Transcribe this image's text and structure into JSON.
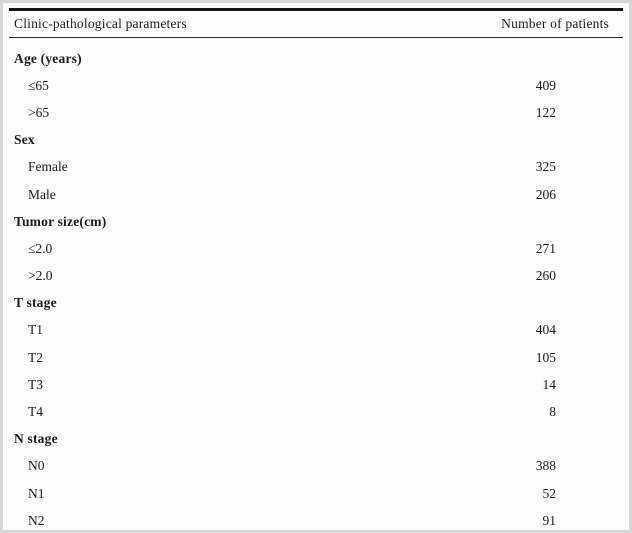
{
  "page": {
    "background_color": "#fcfcfc",
    "frame_border_color": "#d7d7d7",
    "rule_color": "#141414",
    "text_color": "#1c1c1c"
  },
  "table": {
    "header": {
      "parameter_label": "Clinic-pathological parameters",
      "value_label": "Number of patients"
    },
    "rows": [
      {
        "type": "group",
        "label": "Age (years)",
        "value": ""
      },
      {
        "type": "item",
        "label": "≤65",
        "value": "409"
      },
      {
        "type": "item",
        "label": ">65",
        "value": "122"
      },
      {
        "type": "group",
        "label": "Sex",
        "value": ""
      },
      {
        "type": "item",
        "label": "Female",
        "value": "325"
      },
      {
        "type": "item",
        "label": "Male",
        "value": "206"
      },
      {
        "type": "group",
        "label": "Tumor size(cm)",
        "value": ""
      },
      {
        "type": "item",
        "label": "≤2.0",
        "value": "271"
      },
      {
        "type": "item",
        "label": ">2.0",
        "value": "260"
      },
      {
        "type": "group",
        "label": "T stage",
        "value": ""
      },
      {
        "type": "item",
        "label": "T1",
        "value": "404"
      },
      {
        "type": "item",
        "label": "T2",
        "value": "105"
      },
      {
        "type": "item",
        "label": "T3",
        "value": "14"
      },
      {
        "type": "item",
        "label": "T4",
        "value": "8"
      },
      {
        "type": "group",
        "label": "N stage",
        "value": ""
      },
      {
        "type": "item",
        "label": "N0",
        "value": "388"
      },
      {
        "type": "item",
        "label": "N1",
        "value": "52"
      },
      {
        "type": "item",
        "label": "N2",
        "value": "91"
      }
    ]
  }
}
